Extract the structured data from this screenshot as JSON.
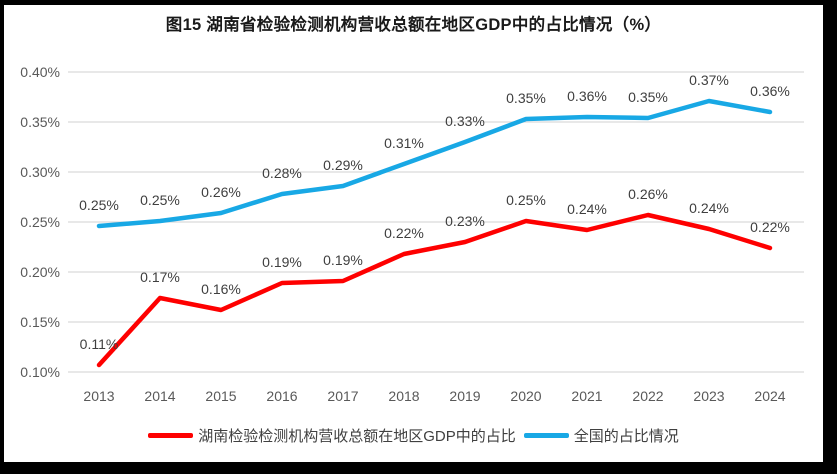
{
  "figure": {
    "title": "图15 湖南省检验检测机构营收总额在地区GDP中的占比情况（%）"
  },
  "colors": {
    "hunan_line": "#FE0000",
    "national_line": "#18A8E5",
    "gridline": "#D9D9D9",
    "tick_text": "#595959",
    "data_label_text": "#3F3F3F",
    "legend_text": "#404040",
    "title_text": "#1A1A1A",
    "frame_border": "#000000",
    "background": "#FFFFFF"
  },
  "chart_data": {
    "type": "line",
    "title": "图15 湖南省检验检测机构营收总额在地区GDP中的占比情况（%）",
    "categories": [
      "2013",
      "2014",
      "2015",
      "2016",
      "2017",
      "2018",
      "2019",
      "2020",
      "2021",
      "2022",
      "2023",
      "2024"
    ],
    "series": [
      {
        "name": "湖南检验检测机构营收总额在地区GDP中的占比",
        "color": "#FE0000",
        "values": [
          0.11,
          0.17,
          0.16,
          0.19,
          0.19,
          0.22,
          0.23,
          0.25,
          0.24,
          0.26,
          0.24,
          0.22
        ],
        "labels": [
          "0.11%",
          "0.17%",
          "0.16%",
          "0.19%",
          "0.19%",
          "0.22%",
          "0.23%",
          "0.25%",
          "0.24%",
          "0.26%",
          "0.24%",
          "0.22%"
        ],
        "plot_values": [
          0.107,
          0.174,
          0.162,
          0.189,
          0.191,
          0.218,
          0.23,
          0.251,
          0.242,
          0.257,
          0.243,
          0.224
        ]
      },
      {
        "name": "全国的占比情况",
        "color": "#18A8E5",
        "values": [
          0.25,
          0.25,
          0.26,
          0.28,
          0.29,
          0.31,
          0.33,
          0.35,
          0.36,
          0.35,
          0.37,
          0.36
        ],
        "labels": [
          "0.25%",
          "0.25%",
          "0.26%",
          "0.28%",
          "0.29%",
          "0.31%",
          "0.33%",
          "0.35%",
          "0.36%",
          "0.35%",
          "0.37%",
          "0.36%"
        ],
        "plot_values": [
          0.246,
          0.251,
          0.259,
          0.278,
          0.286,
          0.308,
          0.33,
          0.353,
          0.355,
          0.354,
          0.371,
          0.36
        ]
      }
    ],
    "xlabel": "",
    "ylabel": "",
    "ylim": [
      0.1,
      0.4
    ],
    "ytick_step": 0.05,
    "ytick_labels": [
      "0.10%",
      "0.15%",
      "0.20%",
      "0.25%",
      "0.30%",
      "0.35%",
      "0.40%"
    ],
    "grid": true,
    "legend_position": "bottom",
    "unit": "%"
  }
}
